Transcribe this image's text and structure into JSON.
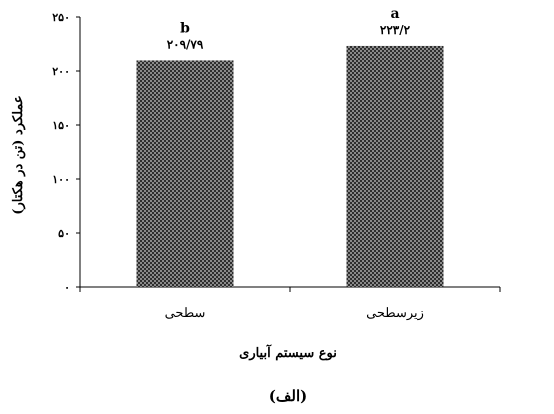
{
  "chart_data": {
    "type": "bar",
    "categories": [
      "سطحی",
      "زیرسطحی"
    ],
    "values": [
      209.79,
      223.2
    ],
    "value_labels": [
      "۲۰۹/۷۹",
      "۲۲۳/۲"
    ],
    "significance_letters": [
      "b",
      "a"
    ],
    "xlabel": "نوع سیستم آبیاری",
    "ylabel": "عملکرد (تن در هکتار)",
    "ylim": [
      0,
      250
    ],
    "yticks": [
      0,
      50,
      100,
      150,
      200,
      250
    ],
    "ytick_labels": [
      "۰",
      "۵۰",
      "۱۰۰",
      "۱۵۰",
      "۲۰۰",
      "۲۵۰"
    ],
    "grid": false,
    "legend": "none",
    "bar_pattern": "dark checkered hatch",
    "bar_color": "#4a4a4a"
  },
  "caption": "(الف)"
}
